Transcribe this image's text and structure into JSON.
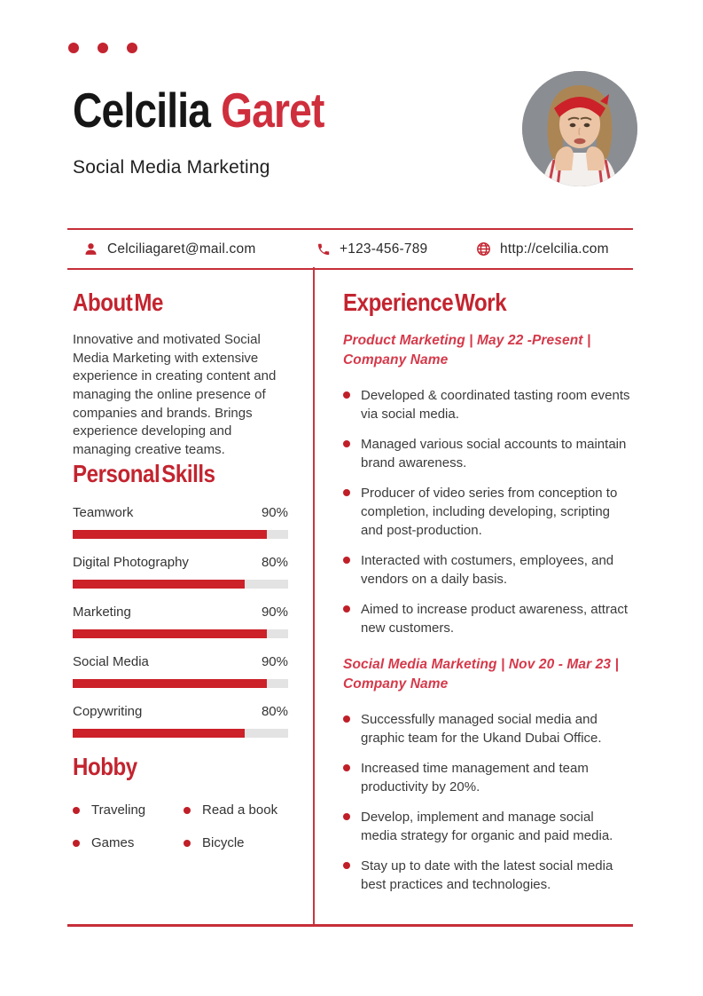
{
  "theme": {
    "accent_red": "#c3242f",
    "line_red": "#c62f38",
    "bar_red": "#cc2129",
    "bar_track": "#e3e3e3",
    "text_dark": "#3b3b3b"
  },
  "header": {
    "name_first": "Celcilia",
    "name_last": "Garet",
    "subtitle": "Social Media Marketing"
  },
  "contact": {
    "email": {
      "icon": "person-icon",
      "text": "Celciliagaret@mail.com"
    },
    "phone": {
      "icon": "phone-icon",
      "text": "+123-456-789"
    },
    "website": {
      "icon": "globe-icon",
      "text": "http://celcilia.com"
    }
  },
  "about": {
    "heading": "About Me",
    "body": "Innovative and motivated Social Media Marketing with extensive experience in creating content and managing the online presence of companies and brands. Brings experience developing and managing creative teams."
  },
  "skills": {
    "heading": "Personal Skills",
    "items": [
      {
        "name": "Teamwork",
        "percent": 90,
        "percent_label": "90%"
      },
      {
        "name": "Digital Photography",
        "percent": 80,
        "percent_label": "80%"
      },
      {
        "name": "Marketing",
        "percent": 90,
        "percent_label": "90%"
      },
      {
        "name": "Social Media",
        "percent": 90,
        "percent_label": "90%"
      },
      {
        "name": "Copywriting",
        "percent": 80,
        "percent_label": "80%"
      }
    ]
  },
  "hobby": {
    "heading": "Hobby",
    "items": [
      "Traveling",
      "Read a book",
      "Games",
      "Bicycle"
    ]
  },
  "experience": {
    "heading": "Experience Work",
    "jobs": [
      {
        "meta": "Product Marketing | May 22 -Present | Company Name",
        "bullets": [
          "Developed & coordinated tasting room events via social media.",
          "Managed various social accounts to maintain brand awareness.",
          "Producer of video series from conception to completion, including developing, scripting and post-production.",
          "Interacted with costumers, employees, and vendors on a daily basis.",
          "Aimed to increase product awareness, attract new customers."
        ]
      },
      {
        "meta": "Social Media Marketing | Nov 20 - Mar 23 | Company Name",
        "bullets": [
          "Successfully managed social media and graphic team for the Ukand Dubai Office.",
          "Increased time management and team productivity by 20%.",
          "Develop, implement and manage social media strategy for organic and paid media.",
          "Stay up to date with the latest social media best practices and technologies."
        ]
      }
    ]
  }
}
